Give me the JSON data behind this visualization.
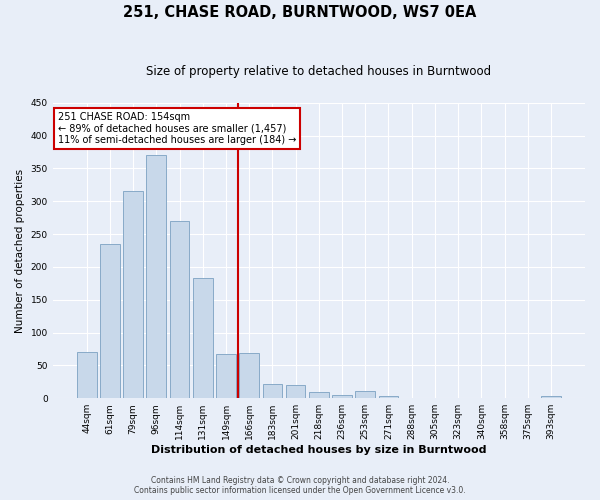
{
  "title": "251, CHASE ROAD, BURNTWOOD, WS7 0EA",
  "subtitle": "Size of property relative to detached houses in Burntwood",
  "xlabel": "Distribution of detached houses by size in Burntwood",
  "ylabel": "Number of detached properties",
  "bar_labels": [
    "44sqm",
    "61sqm",
    "79sqm",
    "96sqm",
    "114sqm",
    "131sqm",
    "149sqm",
    "166sqm",
    "183sqm",
    "201sqm",
    "218sqm",
    "236sqm",
    "253sqm",
    "271sqm",
    "288sqm",
    "305sqm",
    "323sqm",
    "340sqm",
    "358sqm",
    "375sqm",
    "393sqm"
  ],
  "bar_heights": [
    70,
    235,
    315,
    370,
    270,
    183,
    67,
    69,
    22,
    20,
    10,
    5,
    11,
    3,
    0,
    0,
    0,
    0,
    0,
    0,
    4
  ],
  "bar_color": "#c8d8ea",
  "bar_edge_color": "#88aac8",
  "vline_x": 6.5,
  "vline_color": "#cc0000",
  "annotation_title": "251 CHASE ROAD: 154sqm",
  "annotation_line1": "← 89% of detached houses are smaller (1,457)",
  "annotation_line2": "11% of semi-detached houses are larger (184) →",
  "annotation_box_edgecolor": "#cc0000",
  "ylim": [
    0,
    450
  ],
  "yticks": [
    0,
    50,
    100,
    150,
    200,
    250,
    300,
    350,
    400,
    450
  ],
  "footnote1": "Contains HM Land Registry data © Crown copyright and database right 2024.",
  "footnote2": "Contains public sector information licensed under the Open Government Licence v3.0.",
  "bg_color": "#e8eef8",
  "plot_bg_color": "#e8eef8",
  "title_fontsize": 10.5,
  "subtitle_fontsize": 8.5,
  "xlabel_fontsize": 8,
  "ylabel_fontsize": 7.5,
  "tick_fontsize": 6.5,
  "footnote_fontsize": 5.5
}
